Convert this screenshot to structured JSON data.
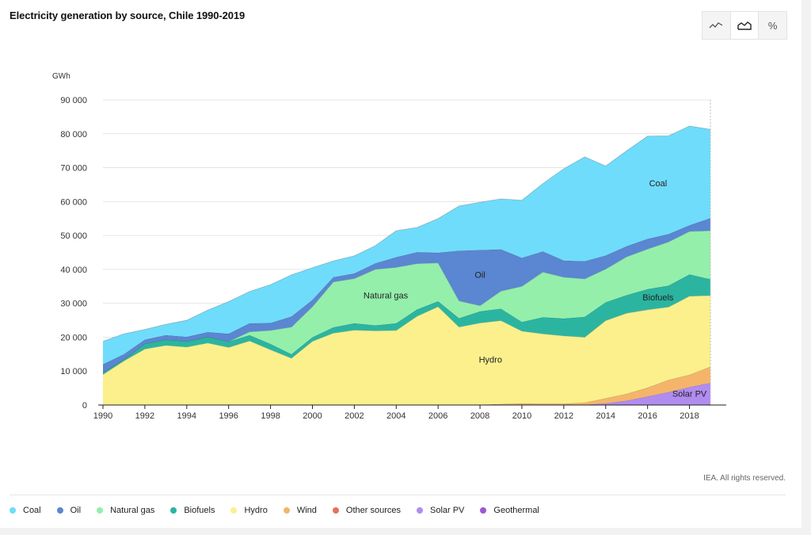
{
  "title": "Electricity generation by source, Chile 1990-2019",
  "toolbar": {
    "buttons": [
      {
        "name": "line-view",
        "icon": "line-chart-icon"
      },
      {
        "name": "area-view",
        "icon": "area-chart-icon",
        "active": true
      },
      {
        "name": "percent-view",
        "label": "%"
      }
    ]
  },
  "copyright": "IEA. All rights reserved.",
  "chart_data": {
    "type": "area",
    "stacked": true,
    "title": "Electricity generation by source, Chile 1990-2019",
    "ylabel": "GWh",
    "ylim": [
      0,
      90000
    ],
    "yticks": [
      0,
      10000,
      20000,
      30000,
      40000,
      50000,
      60000,
      70000,
      80000,
      90000
    ],
    "ytick_labels": [
      "0",
      "10 000",
      "20 000",
      "30 000",
      "40 000",
      "50 000",
      "60 000",
      "70 000",
      "80 000",
      "90 000"
    ],
    "x": [
      1990,
      1991,
      1992,
      1993,
      1994,
      1995,
      1996,
      1997,
      1998,
      1999,
      2000,
      2001,
      2002,
      2003,
      2004,
      2005,
      2006,
      2007,
      2008,
      2009,
      2010,
      2011,
      2012,
      2013,
      2014,
      2015,
      2016,
      2017,
      2018,
      2019
    ],
    "xticks": [
      1990,
      1992,
      1994,
      1996,
      1998,
      2000,
      2002,
      2004,
      2006,
      2008,
      2010,
      2012,
      2014,
      2016,
      2018
    ],
    "grid": true,
    "legend_position": "bottom",
    "series": [
      {
        "name": "Geothermal",
        "color": "#9b59d0",
        "values": [
          0,
          0,
          0,
          0,
          0,
          0,
          0,
          0,
          0,
          0,
          0,
          0,
          0,
          0,
          0,
          0,
          0,
          0,
          0,
          0,
          0,
          0,
          0,
          0,
          0,
          0,
          0,
          0,
          0,
          200
        ]
      },
      {
        "name": "Solar PV",
        "color": "#b18cf0",
        "values": [
          0,
          0,
          0,
          0,
          0,
          0,
          0,
          0,
          0,
          0,
          0,
          0,
          0,
          0,
          0,
          0,
          0,
          0,
          0,
          0,
          0,
          0,
          0,
          100,
          500,
          1300,
          2500,
          3800,
          5300,
          6300
        ]
      },
      {
        "name": "Other sources",
        "color": "#e8715a",
        "values": [
          0,
          0,
          0,
          0,
          0,
          0,
          0,
          0,
          0,
          0,
          0,
          0,
          0,
          0,
          0,
          0,
          0,
          0,
          0,
          0,
          0,
          0,
          0,
          0,
          0,
          0,
          0,
          0,
          0,
          0
        ]
      },
      {
        "name": "Wind",
        "color": "#f4b56a",
        "values": [
          0,
          0,
          0,
          0,
          0,
          0,
          0,
          0,
          0,
          0,
          0,
          0,
          0,
          0,
          0,
          0,
          0,
          0,
          100,
          300,
          500,
          400,
          400,
          600,
          1500,
          2000,
          2600,
          3600,
          3600,
          4800
        ]
      },
      {
        "name": "Hydro",
        "color": "#fbf08c",
        "values": [
          9000,
          13000,
          16500,
          17600,
          17100,
          18300,
          17000,
          18900,
          16300,
          13800,
          18800,
          21200,
          22100,
          21900,
          22000,
          26200,
          29000,
          23000,
          24100,
          24600,
          21300,
          20600,
          20000,
          19300,
          22900,
          23800,
          23000,
          21500,
          23200,
          21000
        ]
      },
      {
        "name": "Biofuels",
        "color": "#2bb5a0",
        "values": [
          500,
          500,
          1600,
          1700,
          1700,
          1800,
          1700,
          1700,
          1700,
          1200,
          1200,
          1700,
          2000,
          1600,
          2100,
          2000,
          1600,
          2600,
          3400,
          3500,
          2700,
          4900,
          5100,
          6000,
          5400,
          5300,
          6100,
          6300,
          6400,
          4800
        ]
      },
      {
        "name": "Natural gas",
        "color": "#94efab",
        "values": [
          0,
          0,
          0,
          0,
          0,
          0,
          0,
          1000,
          4000,
          8000,
          9000,
          13400,
          13200,
          16500,
          16500,
          13500,
          11300,
          5100,
          1700,
          5200,
          10500,
          13300,
          12200,
          11200,
          9800,
          11300,
          11800,
          12900,
          12700,
          14300
        ]
      },
      {
        "name": "Oil",
        "color": "#5b86d1",
        "values": [
          2500,
          1500,
          1200,
          1300,
          1300,
          1400,
          2300,
          2500,
          2200,
          3100,
          2000,
          1400,
          1500,
          1800,
          3000,
          3400,
          3000,
          14800,
          16400,
          12300,
          8400,
          6100,
          4900,
          5200,
          4000,
          3100,
          3000,
          2300,
          1800,
          3700
        ]
      },
      {
        "name": "Coal",
        "color": "#6fdcfb",
        "values": [
          6800,
          6000,
          3000,
          3200,
          4900,
          6500,
          9500,
          9400,
          11300,
          12300,
          9500,
          4800,
          5200,
          5200,
          7800,
          7300,
          10100,
          13200,
          14100,
          14900,
          17000,
          20000,
          27100,
          30800,
          26400,
          28200,
          30300,
          29000,
          29300,
          26200
        ]
      }
    ],
    "legend": [
      "Coal",
      "Oil",
      "Natural gas",
      "Biofuels",
      "Hydro",
      "Wind",
      "Other sources",
      "Solar PV",
      "Geothermal"
    ],
    "annotations": [
      {
        "text": "Coal",
        "x": 2016.5,
        "y": 64500
      },
      {
        "text": "Oil",
        "x": 2008,
        "y": 37500
      },
      {
        "text": "Natural gas",
        "x": 2003.5,
        "y": 31500
      },
      {
        "text": "Biofuels",
        "x": 2016.5,
        "y": 30800
      },
      {
        "text": "Hydro",
        "x": 2008.5,
        "y": 12500
      },
      {
        "text": "Solar PV",
        "x": 2018,
        "y": 2400
      }
    ]
  }
}
